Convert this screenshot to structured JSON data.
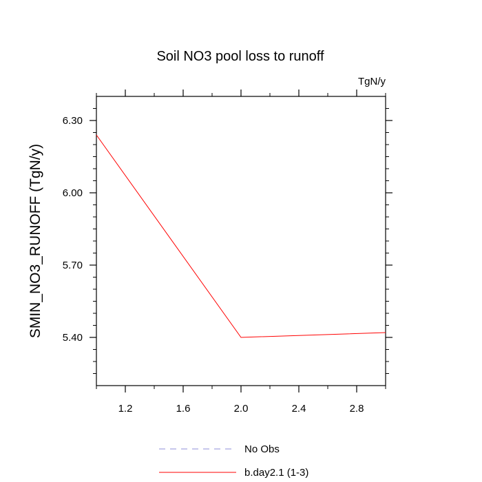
{
  "chart_data": {
    "type": "line",
    "title": "Soil NO3 pool loss to runoff",
    "units_label": "TgN/y",
    "xlabel": "",
    "ylabel": "SMIN_NO3_RUNOFF  (TgN/y)",
    "xlim": [
      1.0,
      3.0
    ],
    "ylim": [
      5.2,
      6.4
    ],
    "x_ticks": [
      1.2,
      1.6,
      2.0,
      2.4,
      2.8
    ],
    "x_tick_labels": [
      "1.2",
      "1.6",
      "2.0",
      "2.4",
      "2.8"
    ],
    "y_ticks": [
      5.4,
      5.7,
      6.0,
      6.3
    ],
    "y_tick_labels": [
      "5.40",
      "5.70",
      "6.00",
      "6.30"
    ],
    "grid": false,
    "legend_position": "bottom",
    "series": [
      {
        "name": "b.day2.1 (1-3)",
        "color": "#ff0000",
        "style": "solid",
        "x": [
          1,
          2,
          3
        ],
        "y": [
          6.24,
          5.4,
          5.42
        ]
      },
      {
        "name": "No Obs",
        "color": "#8c8cd9",
        "style": "dashed",
        "x": [],
        "y": []
      }
    ],
    "legend_order": [
      "No Obs",
      "b.day2.1 (1-3)"
    ]
  }
}
